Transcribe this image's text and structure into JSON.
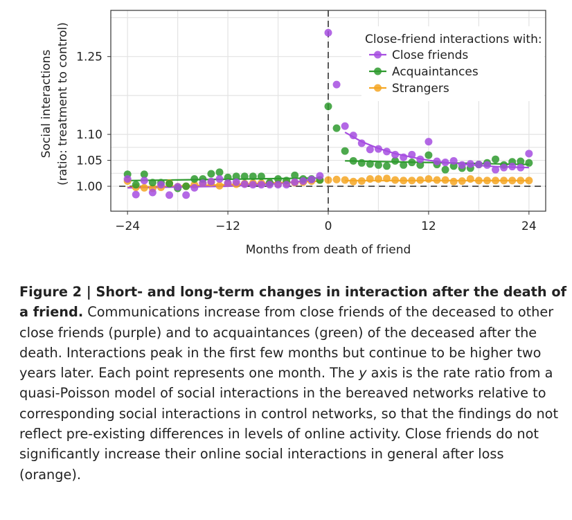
{
  "chart_data": {
    "type": "scatter",
    "xlabel": "Months from death of friend",
    "ylabel_line1": "Social interactions",
    "ylabel_line2": "(ratio: treatment to control)",
    "xlim": [
      -26,
      26
    ],
    "ylim": [
      0.952,
      1.339
    ],
    "xticks": [
      -24,
      -12,
      0,
      12,
      24
    ],
    "xtick_labels": [
      "−24",
      "−12",
      "0",
      "12",
      "24"
    ],
    "yticks": [
      1.0,
      1.05,
      1.1,
      1.25
    ],
    "ytick_labels": [
      "1.00",
      "1.05",
      "1.10",
      "1.25"
    ],
    "grid": true,
    "reference_lines": {
      "x": 0,
      "y": 1.0
    },
    "legend": {
      "title": "Close-friend interactions with:",
      "placement": "top-right"
    },
    "x": [
      -24,
      -23,
      -22,
      -21,
      -20,
      -19,
      -18,
      -17,
      -16,
      -15,
      -14,
      -13,
      -12,
      -11,
      -10,
      -9,
      -8,
      -7,
      -6,
      -5,
      -4,
      -3,
      -2,
      -1,
      0,
      1,
      2,
      3,
      4,
      5,
      6,
      7,
      8,
      9,
      10,
      11,
      12,
      13,
      14,
      15,
      16,
      17,
      18,
      19,
      20,
      21,
      22,
      23,
      24
    ],
    "series": [
      {
        "name": "Close friends",
        "color": "#a64ee0",
        "values": [
          1.014,
          0.984,
          1.011,
          0.988,
          1.003,
          0.983,
          0.999,
          0.983,
          0.997,
          1.006,
          1.009,
          1.014,
          1.006,
          1.008,
          1.004,
          1.003,
          1.003,
          1.003,
          1.003,
          1.003,
          1.008,
          1.01,
          1.013,
          1.02,
          1.296,
          1.196,
          1.116,
          1.098,
          1.083,
          1.071,
          1.072,
          1.067,
          1.061,
          1.056,
          1.061,
          1.052,
          1.086,
          1.048,
          1.046,
          1.049,
          1.041,
          1.043,
          1.042,
          1.041,
          1.032,
          1.036,
          1.038,
          1.036,
          1.063
        ],
        "fit_pre": {
          "x": [
            -24,
            -12,
            -6,
            -3,
            -1
          ],
          "y": [
            0.997,
            1.0,
            1.005,
            1.01,
            1.018
          ]
        },
        "fit_post": {
          "x": [
            2,
            4,
            6,
            8,
            10,
            12,
            14,
            16,
            18,
            20,
            22,
            24
          ],
          "y": [
            1.104,
            1.086,
            1.073,
            1.063,
            1.056,
            1.05,
            1.046,
            1.043,
            1.04,
            1.038,
            1.037,
            1.036
          ]
        }
      },
      {
        "name": "Acquaintances",
        "color": "#2e9a2e",
        "values": [
          1.023,
          1.003,
          1.023,
          1.007,
          1.007,
          1.005,
          0.996,
          1.0,
          1.014,
          1.014,
          1.024,
          1.027,
          1.017,
          1.019,
          1.019,
          1.019,
          1.019,
          1.007,
          1.014,
          1.011,
          1.021,
          1.014,
          1.014,
          1.012,
          1.154,
          1.112,
          1.068,
          1.049,
          1.045,
          1.043,
          1.041,
          1.039,
          1.049,
          1.041,
          1.046,
          1.041,
          1.06,
          1.042,
          1.032,
          1.039,
          1.035,
          1.035,
          1.042,
          1.045,
          1.052,
          1.041,
          1.047,
          1.048,
          1.045
        ],
        "fit_pre": {
          "x": [
            -24,
            -1
          ],
          "y": [
            1.011,
            1.016
          ]
        },
        "fit_post": {
          "x": [
            2,
            24
          ],
          "y": [
            1.049,
            1.042
          ]
        }
      },
      {
        "name": "Strangers",
        "color": "#f5a623",
        "values": [
          1.01,
          0.998,
          0.997,
          0.996,
          0.998,
          1.006,
          0.999,
          1.0,
          1.003,
          1.006,
          1.007,
          1.001,
          1.006,
          1.004,
          1.005,
          1.006,
          1.006,
          1.005,
          1.005,
          1.006,
          1.007,
          1.008,
          1.01,
          1.012,
          1.012,
          1.013,
          1.012,
          1.009,
          1.01,
          1.014,
          1.014,
          1.015,
          1.012,
          1.011,
          1.011,
          1.012,
          1.014,
          1.012,
          1.012,
          1.009,
          1.01,
          1.014,
          1.011,
          1.011,
          1.011,
          1.011,
          1.011,
          1.011,
          1.011
        ],
        "fit_pre": {
          "x": [
            -24,
            -12,
            -1
          ],
          "y": [
            0.998,
            1.003,
            1.01
          ]
        },
        "fit_post": {
          "x": [
            2,
            24
          ],
          "y": [
            1.011,
            1.011
          ]
        }
      }
    ]
  },
  "caption": {
    "bold": "Figure 2 | Short- and long-term changes in interaction after the death of a friend.",
    "text1": " Communications increase from close friends of the deceased to other close friends (purple) and to acquaintances (green) of the deceased after the death. Interactions peak in the first few months but continue to be higher two years later. Each point represents one month. The ",
    "italic": "y",
    "text2": " axis is the rate ratio from a quasi-Poisson model of social interactions in the bereaved networks relative to corresponding social interactions in control networks, so that the findings do not reflect pre-existing differences in levels of online activity. Close friends do not significantly increase their online social interactions in general after loss (orange)."
  }
}
